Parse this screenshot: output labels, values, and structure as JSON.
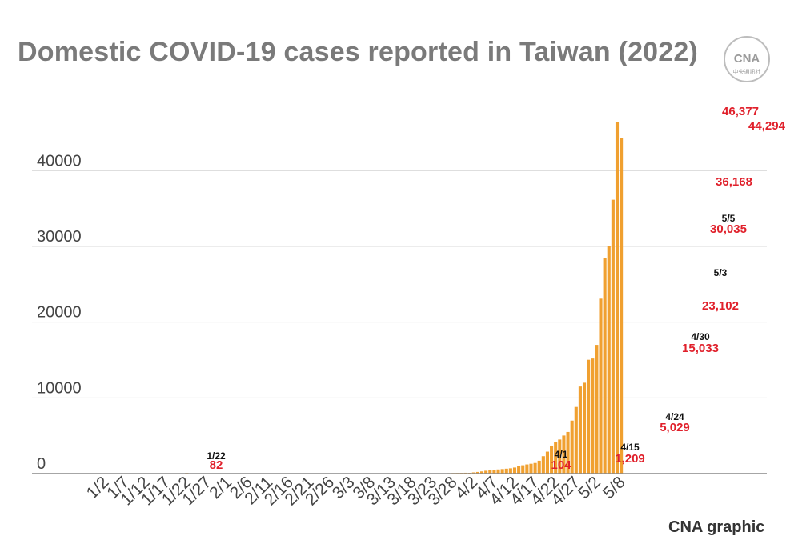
{
  "title": "Domestic COVID-19 cases reported in Taiwan (2022)",
  "credit": "CNA graphic",
  "logo": {
    "text": "CNA",
    "subtext": "中央通訊社"
  },
  "colors": {
    "bar": "#f0a030",
    "grid": "#d9d9d9",
    "axis": "#444444",
    "value_label": "#e0202b",
    "date_label": "#111111",
    "title": "#7a7a7a"
  },
  "chart_data": {
    "type": "bar",
    "title": "Domestic COVID-19 cases reported in Taiwan (2022)",
    "xlabel": "",
    "ylabel": "",
    "ylim": [
      0,
      46377
    ],
    "yticks": [
      0,
      10000,
      20000,
      30000,
      40000
    ],
    "grid": true,
    "xticks": [
      "1/2",
      "1/7",
      "1/12",
      "1/17",
      "1/22",
      "1/27",
      "2/1",
      "2/6",
      "2/11",
      "2/16",
      "2/21",
      "2/26",
      "3/3",
      "3/8",
      "3/13",
      "3/18",
      "3/23",
      "3/28",
      "4/2",
      "4/7",
      "4/12",
      "4/17",
      "4/22",
      "4/27",
      "5/2",
      "5/8"
    ],
    "x": [
      "1/22",
      "3/26",
      "3/27",
      "3/28",
      "3/29",
      "3/30",
      "3/31",
      "4/1",
      "4/2",
      "4/3",
      "4/4",
      "4/5",
      "4/6",
      "4/7",
      "4/8",
      "4/9",
      "4/10",
      "4/11",
      "4/12",
      "4/13",
      "4/14",
      "4/15",
      "4/16",
      "4/17",
      "4/18",
      "4/19",
      "4/20",
      "4/21",
      "4/22",
      "4/23",
      "4/24",
      "4/25",
      "4/26",
      "4/27",
      "4/28",
      "4/29",
      "4/30",
      "5/1",
      "5/2",
      "5/3",
      "5/4",
      "5/5",
      "5/6",
      "5/7",
      "5/8"
    ],
    "values": [
      82,
      40,
      60,
      80,
      90,
      100,
      110,
      104,
      160,
      220,
      290,
      380,
      430,
      500,
      550,
      600,
      650,
      700,
      800,
      950,
      1100,
      1209,
      1300,
      1400,
      1700,
      2300,
      2900,
      3700,
      4200,
      4500,
      5029,
      5500,
      7000,
      8800,
      11500,
      12000,
      15033,
      15200,
      17000,
      23102,
      28500,
      30035,
      36168,
      46377,
      44294
    ],
    "annotations": [
      {
        "x": "1/22",
        "date": "1/22",
        "value": "82"
      },
      {
        "x": "4/1",
        "date": "4/1",
        "value": "104"
      },
      {
        "x": "4/15",
        "date": "4/15",
        "value": "1,209"
      },
      {
        "x": "4/24",
        "date": "4/24",
        "value": "5,029"
      },
      {
        "x": "4/30",
        "date": "4/30",
        "value": "15,033"
      },
      {
        "x": "5/3",
        "date": "5/3",
        "value": "23,102"
      },
      {
        "x": "5/5",
        "date": "5/5",
        "value": "30,035"
      },
      {
        "x": "5/6",
        "date": "",
        "value": "36,168"
      },
      {
        "x": "5/7",
        "date": "",
        "value": "46,377"
      },
      {
        "x": "5/8",
        "date": "",
        "value": "44,294"
      }
    ]
  }
}
